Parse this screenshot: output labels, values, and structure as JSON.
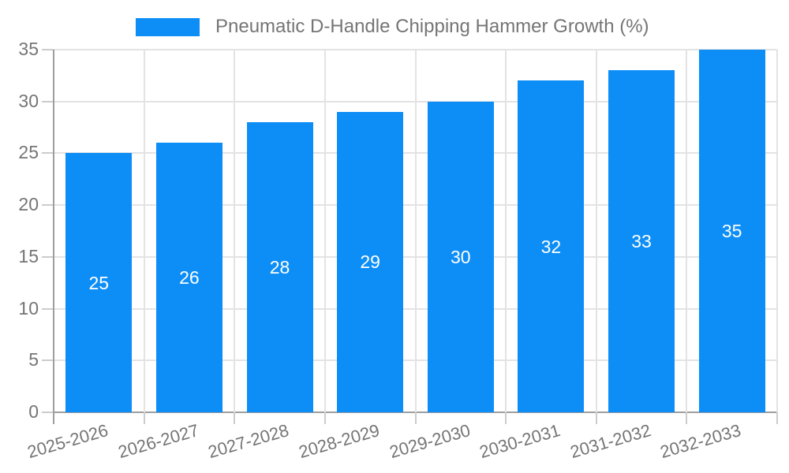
{
  "chart_data": {
    "type": "bar",
    "title": "Pneumatic D-Handle Chipping Hammer Growth (%)",
    "categories": [
      "2025-2026",
      "2026-2027",
      "2027-2028",
      "2028-2029",
      "2029-2030",
      "2030-2031",
      "2031-2032",
      "2032-2033"
    ],
    "values": [
      25,
      26,
      28,
      29,
      30,
      32,
      33,
      35
    ],
    "xlabel": "",
    "ylabel": "",
    "ylim": [
      0,
      35
    ],
    "yticks": [
      0,
      5,
      10,
      15,
      20,
      25,
      30,
      35
    ],
    "grid": true,
    "legend_position": "top-center",
    "colors": {
      "bar": "#0d8ef7",
      "value_label": "#ffffff",
      "axis_text": "#757575",
      "legend_text": "#757575",
      "gridline": "#e3e3e3",
      "axis_line": "#9e9e9e",
      "tick_line": "#cccccc",
      "background": "#ffffff"
    }
  }
}
